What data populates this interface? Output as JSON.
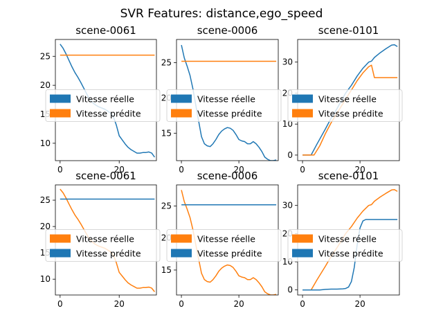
{
  "figure": {
    "title": "SVR Features: distance,ego_speed"
  },
  "colors": {
    "blue": "#1f77b4",
    "orange": "#ff7f0e"
  },
  "chart_data": [
    {
      "type": "line",
      "title": "scene-0061",
      "xlim": [
        -1.6,
        32.6
      ],
      "ylim": [
        7.0,
        27.9
      ],
      "xticks": [
        0,
        20
      ],
      "yticks": [
        10,
        15,
        20,
        25
      ],
      "legend": "center-left",
      "series": [
        {
          "name": "Vitesse réelle",
          "color": "blue",
          "x": [
            0,
            1,
            2,
            3,
            4,
            5,
            6,
            7,
            8,
            9,
            10,
            11,
            12,
            13,
            14,
            15,
            16,
            17,
            18,
            19,
            20,
            21,
            22,
            23,
            24,
            25,
            26,
            27,
            28,
            29,
            30,
            31,
            32
          ],
          "y": [
            27.1,
            26.4,
            25.4,
            24.3,
            23.2,
            22.2,
            21.4,
            20.5,
            19.5,
            18.5,
            17.6,
            17.0,
            16.6,
            16.3,
            16.1,
            15.9,
            15.6,
            15.2,
            14.6,
            13.2,
            11.3,
            10.6,
            9.9,
            9.3,
            8.9,
            8.6,
            8.3,
            8.3,
            8.4,
            8.4,
            8.5,
            8.3,
            7.6
          ]
        },
        {
          "name": "Vitesse prédite",
          "color": "orange",
          "x": [
            0,
            32
          ],
          "y": [
            25.2,
            25.2
          ]
        }
      ]
    },
    {
      "type": "line",
      "title": "scene-0006",
      "xlim": [
        -1.7,
        33.7
      ],
      "ylim": [
        11.1,
        28.3
      ],
      "xticks": [
        0,
        20
      ],
      "yticks": [
        15,
        20,
        25
      ],
      "legend": "center-left",
      "series": [
        {
          "name": "Vitesse réelle",
          "color": "blue",
          "x": [
            0,
            1,
            2,
            3,
            4,
            5,
            6,
            7,
            8,
            9,
            10,
            11,
            12,
            13,
            14,
            15,
            16,
            17,
            18,
            19,
            20,
            21,
            22,
            23,
            24,
            25,
            26,
            27,
            28,
            29,
            30,
            31,
            32,
            33
          ],
          "y": [
            27.5,
            25.7,
            24.5,
            23.2,
            21.3,
            19.0,
            16.7,
            14.5,
            13.5,
            13.2,
            13.1,
            13.5,
            14.1,
            14.8,
            15.3,
            15.6,
            15.8,
            15.7,
            15.4,
            14.8,
            14.1,
            13.9,
            13.8,
            13.5,
            13.5,
            13.8,
            13.5,
            13.0,
            12.4,
            11.6,
            11.3,
            11.1,
            11.1,
            11.2
          ]
        },
        {
          "name": "Vitesse prédite",
          "color": "orange",
          "x": [
            0,
            33
          ],
          "y": [
            25.2,
            25.2
          ]
        }
      ]
    },
    {
      "type": "line",
      "title": "scene-0101",
      "xlim": [
        -1.7,
        33.7
      ],
      "ylim": [
        -1.8,
        37.3
      ],
      "xticks": [
        0,
        20
      ],
      "yticks": [
        0,
        10,
        20,
        30
      ],
      "legend": "center-left",
      "series": [
        {
          "name": "Vitesse réelle",
          "color": "blue",
          "x": [
            0,
            3,
            5,
            8,
            10,
            12,
            15,
            17,
            19,
            21,
            23,
            24,
            25,
            27,
            29,
            31,
            32,
            33
          ],
          "y": [
            0,
            0,
            3.5,
            8.5,
            12,
            15,
            20,
            22.5,
            25.5,
            28,
            30,
            30.3,
            31.5,
            33,
            34.3,
            35.5,
            35.6,
            35
          ]
        },
        {
          "name": "Vitesse prédite",
          "color": "orange",
          "x": [
            0,
            4,
            6,
            8,
            10,
            12,
            15,
            17,
            19,
            21,
            23,
            24,
            25,
            27,
            29,
            31,
            33
          ],
          "y": [
            0,
            0,
            3,
            7,
            10.5,
            13.5,
            18,
            21,
            24,
            26.5,
            28.5,
            29,
            25,
            25,
            25,
            25,
            25
          ]
        }
      ]
    },
    {
      "type": "line",
      "title": "scene-0061",
      "xlim": [
        -1.6,
        32.6
      ],
      "ylim": [
        7.0,
        27.9
      ],
      "xticks": [
        0,
        20
      ],
      "yticks": [
        10,
        15,
        20,
        25
      ],
      "legend": "center-left",
      "series": [
        {
          "name": "Vitesse réelle",
          "color": "orange",
          "x": [
            0,
            1,
            2,
            3,
            4,
            5,
            6,
            7,
            8,
            9,
            10,
            11,
            12,
            13,
            14,
            15,
            16,
            17,
            18,
            19,
            20,
            21,
            22,
            23,
            24,
            25,
            26,
            27,
            28,
            29,
            30,
            31,
            32
          ],
          "y": [
            27.1,
            26.4,
            25.4,
            24.3,
            23.2,
            22.2,
            21.4,
            20.5,
            19.5,
            18.5,
            17.6,
            17.0,
            16.6,
            16.3,
            16.1,
            15.9,
            15.6,
            15.2,
            14.6,
            13.2,
            11.3,
            10.6,
            9.9,
            9.3,
            8.9,
            8.6,
            8.3,
            8.3,
            8.4,
            8.4,
            8.5,
            8.3,
            7.6
          ]
        },
        {
          "name": "Vitesse prédite",
          "color": "blue",
          "x": [
            0,
            32
          ],
          "y": [
            25.2,
            25.2
          ]
        }
      ]
    },
    {
      "type": "line",
      "title": "scene-0006",
      "xlim": [
        -1.7,
        33.7
      ],
      "ylim": [
        11.1,
        28.3
      ],
      "xticks": [
        0,
        20
      ],
      "yticks": [
        15,
        20,
        25
      ],
      "legend": "center-left",
      "series": [
        {
          "name": "Vitesse réelle",
          "color": "orange",
          "x": [
            0,
            1,
            2,
            3,
            4,
            5,
            6,
            7,
            8,
            9,
            10,
            11,
            12,
            13,
            14,
            15,
            16,
            17,
            18,
            19,
            20,
            21,
            22,
            23,
            24,
            25,
            26,
            27,
            28,
            29,
            30,
            31,
            32,
            33
          ],
          "y": [
            27.5,
            25.7,
            24.5,
            23.2,
            21.3,
            19.0,
            16.7,
            14.5,
            13.5,
            13.2,
            13.1,
            13.5,
            14.1,
            14.8,
            15.3,
            15.6,
            15.8,
            15.7,
            15.4,
            14.8,
            14.1,
            13.9,
            13.8,
            13.5,
            13.5,
            13.8,
            13.5,
            13.0,
            12.4,
            11.6,
            11.3,
            11.1,
            11.1,
            11.2
          ]
        },
        {
          "name": "Vitesse prédite",
          "color": "blue",
          "x": [
            0,
            33
          ],
          "y": [
            25.2,
            25.2
          ]
        }
      ]
    },
    {
      "type": "line",
      "title": "scene-0101",
      "xlim": [
        -1.7,
        33.7
      ],
      "ylim": [
        -1.8,
        37.3
      ],
      "xticks": [
        0,
        20
      ],
      "yticks": [
        0,
        10,
        20,
        30
      ],
      "legend": "center-left",
      "series": [
        {
          "name": "Vitesse réelle",
          "color": "orange",
          "x": [
            0,
            3,
            5,
            8,
            10,
            12,
            15,
            17,
            19,
            21,
            23,
            24,
            25,
            27,
            29,
            31,
            32,
            33
          ],
          "y": [
            0,
            0,
            3.5,
            8.5,
            12,
            15,
            20,
            22.5,
            25.5,
            28,
            30,
            30.3,
            31.5,
            33,
            34.3,
            35.5,
            35.6,
            35
          ]
        },
        {
          "name": "Vitesse prédite",
          "color": "blue",
          "x": [
            0,
            4,
            6,
            8,
            10,
            12,
            14,
            15,
            16,
            17,
            18,
            19,
            20,
            21,
            22,
            25,
            28,
            31,
            33
          ],
          "y": [
            0,
            0,
            0,
            0.2,
            0.3,
            0.3,
            0.4,
            0.5,
            1,
            3,
            8,
            16,
            22,
            24.5,
            25,
            25,
            25,
            25,
            25
          ]
        }
      ]
    }
  ]
}
